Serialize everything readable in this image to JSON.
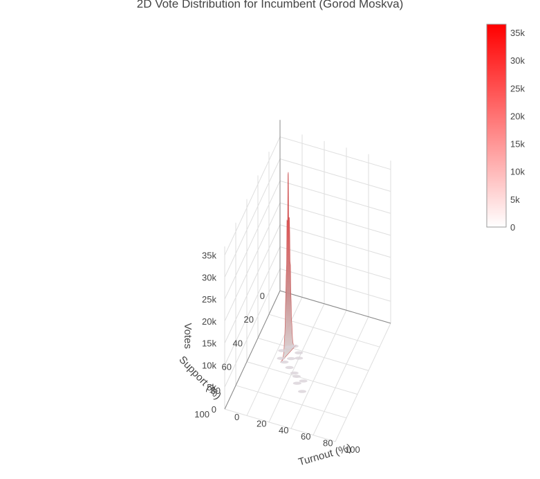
{
  "chart_data": {
    "type": "surface",
    "title": "2D Vote Distribution for Incumbent (Gorod Moskva)",
    "x_axis": {
      "label": "Turnout (%)",
      "range": [
        0,
        100
      ],
      "ticks": [
        "0",
        "20",
        "40",
        "60",
        "80",
        "100"
      ]
    },
    "y_axis": {
      "label": "Support (%)",
      "range": [
        0,
        100
      ],
      "ticks": [
        "0",
        "20",
        "40",
        "60",
        "80",
        "100"
      ]
    },
    "z_axis": {
      "label": "Votes",
      "range": [
        0,
        37000
      ],
      "ticks": [
        "0",
        "5k",
        "10k",
        "15k",
        "20k",
        "25k",
        "30k",
        "35k"
      ]
    },
    "peak": {
      "turnout": 30,
      "support": 45,
      "votes": 36500
    },
    "colorscale": {
      "low": "#ffffff",
      "high": "#ff0000",
      "range": [
        0,
        36500
      ]
    },
    "colorbar": {
      "ticks": [
        "0",
        "5k",
        "10k",
        "15k",
        "20k",
        "25k",
        "30k",
        "35k"
      ]
    },
    "grid": true
  }
}
